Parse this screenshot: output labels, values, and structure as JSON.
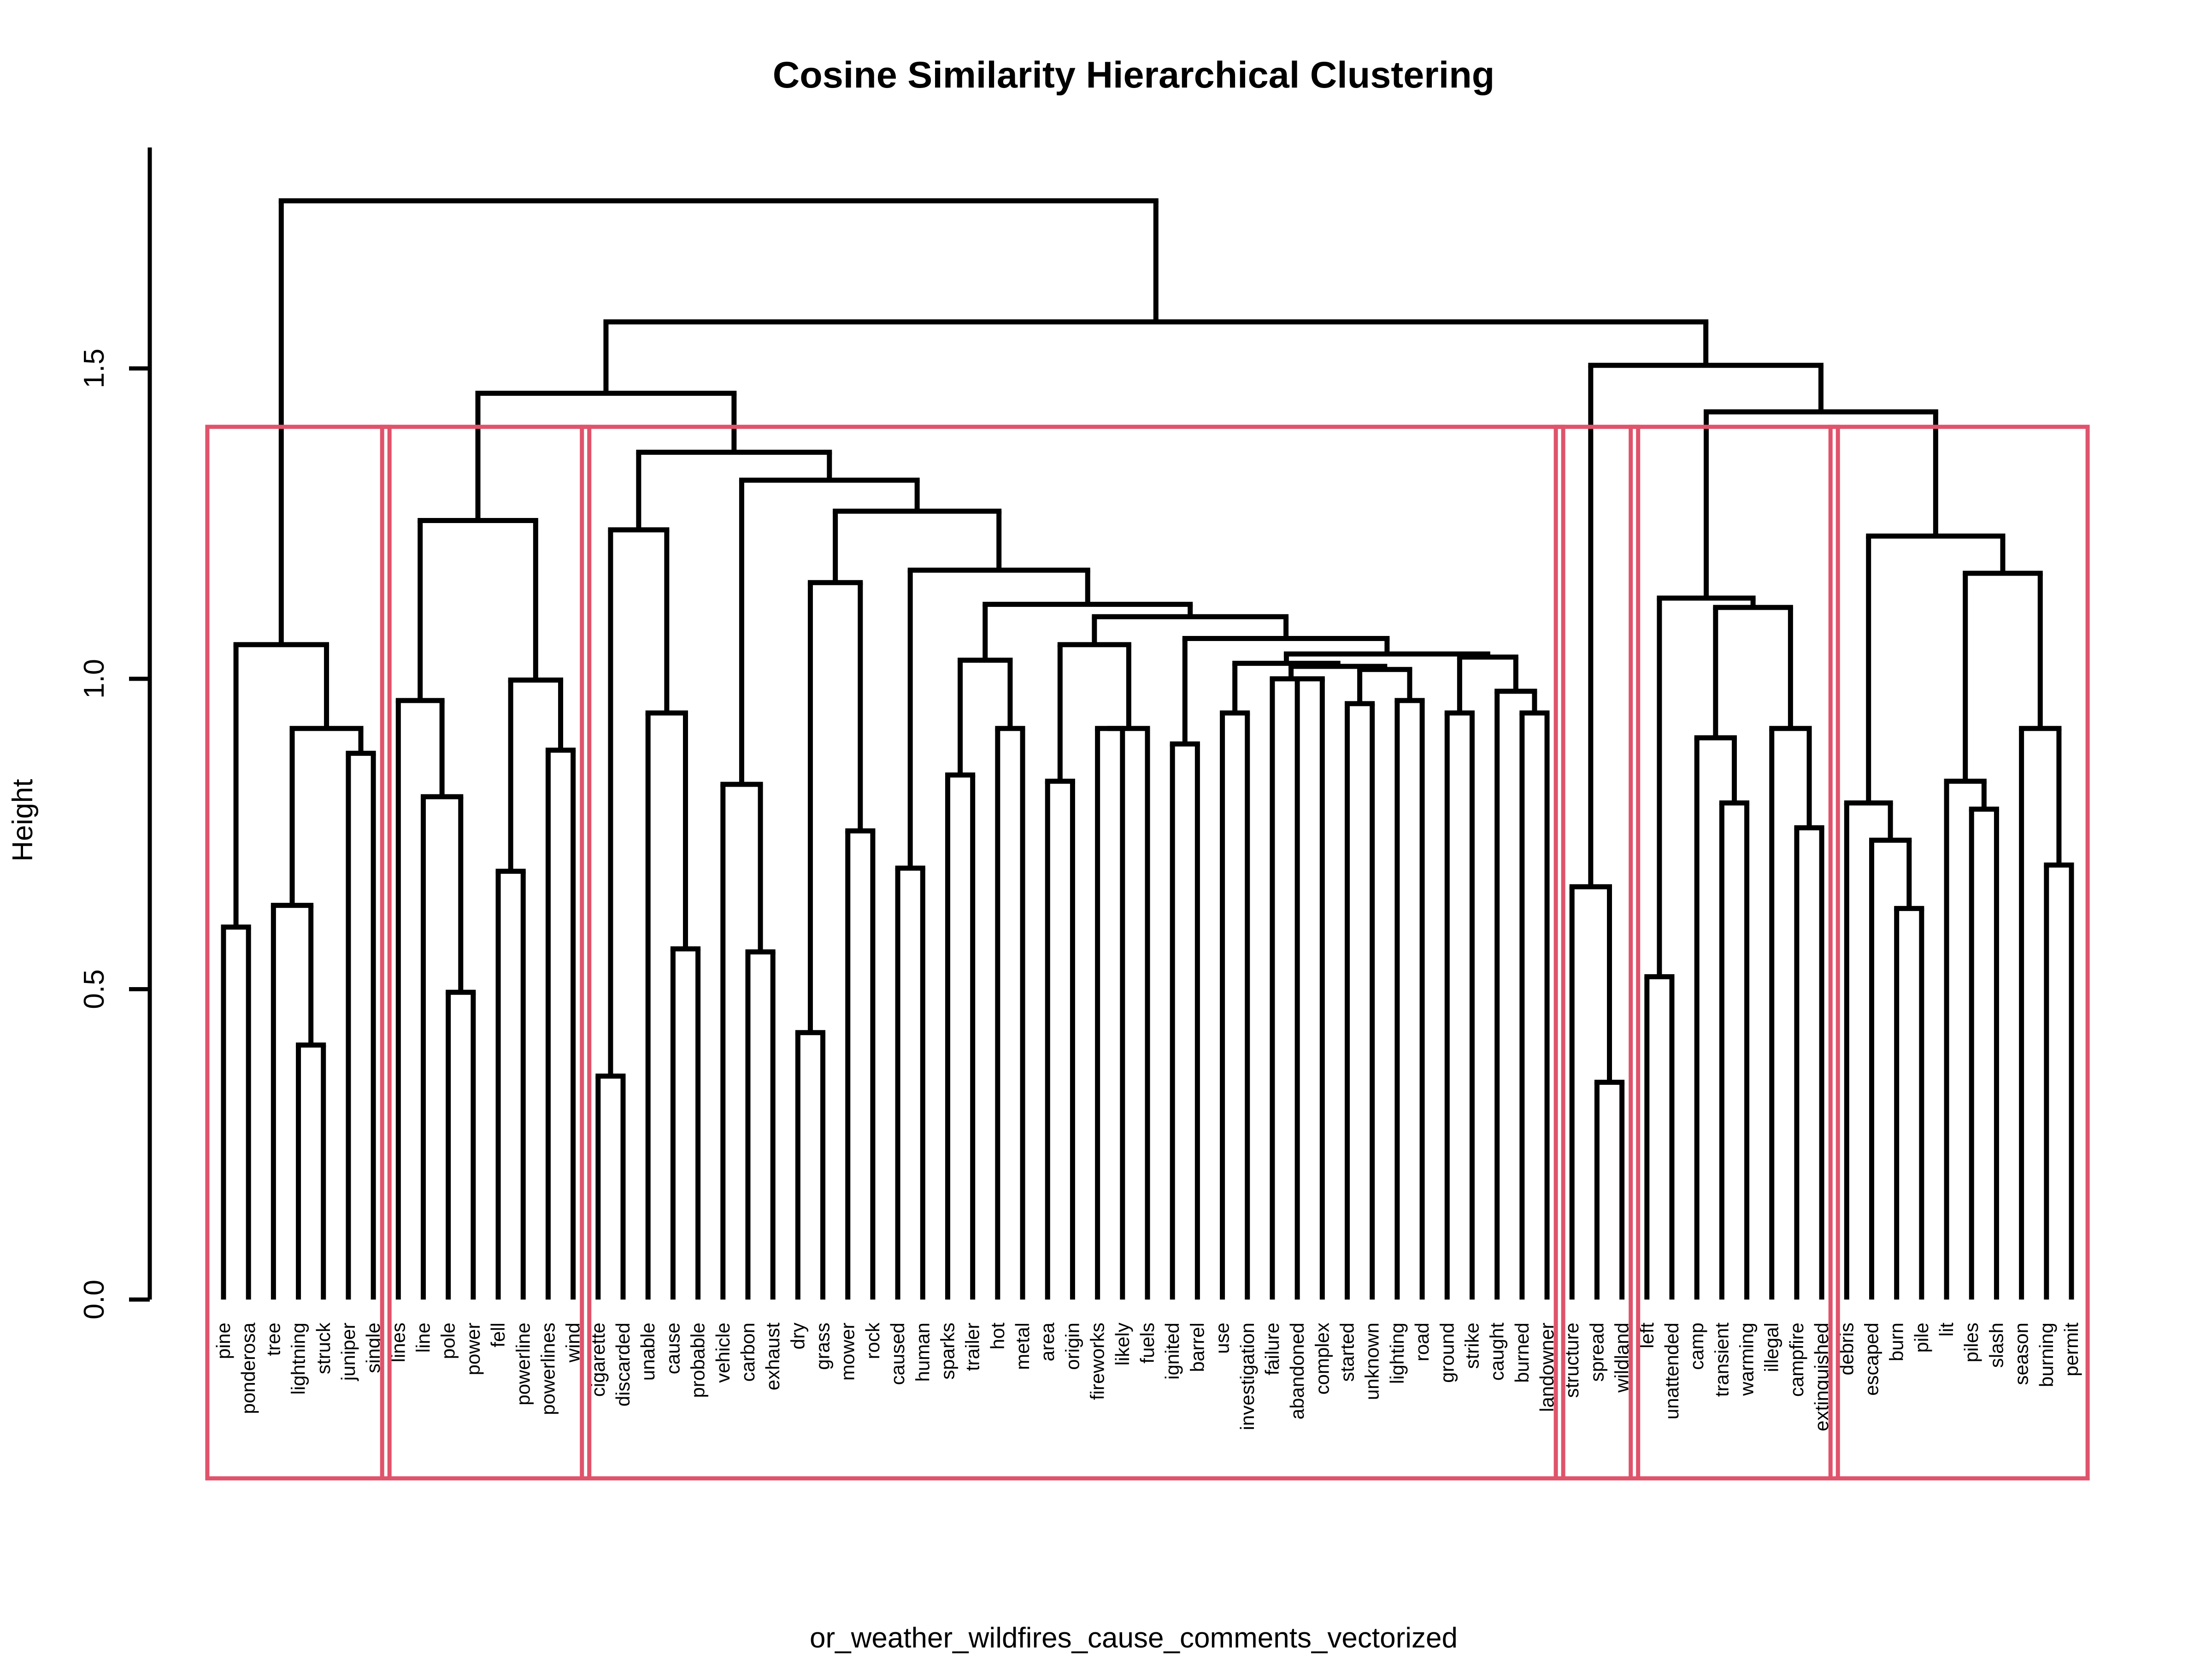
{
  "chart_data": {
    "type": "dendrogram",
    "title": "Cosine Similarity Hierarchical Clustering",
    "xlabel": "or_weather_wildfires_cause_comments_vectorized",
    "ylabel": "Height",
    "ylim": [
      0,
      1.8
    ],
    "yticks": [
      {
        "value": 0,
        "label": "0.0"
      },
      {
        "value": 0.5,
        "label": "0.5"
      },
      {
        "value": 1.0,
        "label": "1.0"
      },
      {
        "value": 1.5,
        "label": "1.5"
      }
    ],
    "leaves": [
      "pine",
      "ponderosa",
      "tree",
      "lightning",
      "struck",
      "juniper",
      "single",
      "lines",
      "line",
      "pole",
      "power",
      "fell",
      "powerline",
      "powerlines",
      "wind",
      "cigarette",
      "discarded",
      "unable",
      "cause",
      "probable",
      "vehicle",
      "carbon",
      "exhaust",
      "dry",
      "grass",
      "mower",
      "rock",
      "caused",
      "human",
      "sparks",
      "trailer",
      "hot",
      "metal",
      "area",
      "origin",
      "fireworks",
      "likely",
      "fuels",
      "ignited",
      "barrel",
      "use",
      "investigation",
      "failure",
      "abandoned",
      "complex",
      "started",
      "unknown",
      "lighting",
      "road",
      "ground",
      "strike",
      "caught",
      "burned",
      "landowner",
      "structure",
      "spread",
      "wildland",
      "left",
      "unattended",
      "camp",
      "transient",
      "warming",
      "illegal",
      "campfire",
      "extinguished",
      "debris",
      "escaped",
      "burn",
      "pile",
      "lit",
      "piles",
      "slash",
      "season",
      "burning",
      "permit"
    ],
    "tree": [
      [
        "pine",
        [
          "ponderosa",
          0.6
        ]
      ],
      [
        [
          [
            "tree",
            [
              [
                "lightning",
                "struck",
                0.41
              ],
              0.635
            ]
          ],
          [
            [
              "juniper",
              "single",
              0.88
            ],
            0.92
          ]
        ],
        1.05
      ],
      1.76
    ],
    "structure": "Nested arrays: [leftChild, rightChild, mergeHeight] for the top-level splits plus branch tree under #chart script",
    "branches": {
      "root": 1.77,
      "left_cluster": {
        "leaves": [
          "pine",
          "ponderosa",
          "tree",
          "lightning",
          "struck",
          "juniper",
          "single"
        ]
      },
      "right": 1.575
    },
    "clusters": [
      {
        "leaves": [
          "pine",
          "single"
        ],
        "count": 7
      },
      {
        "leaves": [
          "lines",
          "wind"
        ],
        "count": 8
      },
      {
        "leaves": [
          "cigarette",
          "landowner"
        ],
        "count": 39
      },
      {
        "leaves": [
          "structure",
          "wildland"
        ],
        "count": 3
      },
      {
        "leaves": [
          "left",
          "extinguished"
        ],
        "count": 8
      },
      {
        "leaves": [
          "debris",
          "permit"
        ],
        "count": 10
      }
    ],
    "cluster_cut_height": 1.4,
    "colors": {
      "tree": "#000000",
      "cluster_box": "#DF536B"
    }
  }
}
